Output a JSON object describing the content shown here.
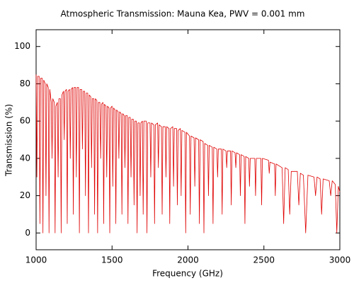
{
  "chart_data": {
    "type": "line",
    "title": "Atmospheric Transmission: Mauna Kea, PWV = 0.001 mm",
    "x_label": "Frequency (GHz)",
    "y_label": "Transmission (%)",
    "color": "#e00000",
    "xlim": [
      1000,
      3000
    ],
    "ylim": [
      -9,
      109
    ],
    "xticks": [
      1000,
      1500,
      2000,
      2500,
      3000
    ],
    "yticks": [
      0,
      20,
      40,
      60,
      80,
      100
    ],
    "x": [
      1000,
      1005,
      1010,
      1020,
      1025,
      1030,
      1040,
      1045,
      1050,
      1060,
      1065,
      1070,
      1080,
      1085,
      1090,
      1100,
      1105,
      1110,
      1120,
      1125,
      1130,
      1140,
      1145,
      1150,
      1160,
      1165,
      1170,
      1180,
      1185,
      1190,
      1200,
      1205,
      1210,
      1220,
      1225,
      1230,
      1240,
      1245,
      1250,
      1260,
      1265,
      1270,
      1280,
      1285,
      1290,
      1300,
      1305,
      1310,
      1320,
      1325,
      1330,
      1340,
      1345,
      1350,
      1360,
      1365,
      1370,
      1380,
      1385,
      1390,
      1400,
      1405,
      1410,
      1420,
      1425,
      1430,
      1440,
      1445,
      1450,
      1460,
      1465,
      1470,
      1480,
      1485,
      1490,
      1500,
      1505,
      1510,
      1520,
      1525,
      1530,
      1540,
      1545,
      1550,
      1560,
      1565,
      1570,
      1580,
      1585,
      1590,
      1600,
      1605,
      1610,
      1620,
      1625,
      1630,
      1640,
      1645,
      1650,
      1660,
      1665,
      1670,
      1680,
      1685,
      1690,
      1700,
      1705,
      1710,
      1725,
      1730,
      1735,
      1750,
      1755,
      1760,
      1775,
      1780,
      1785,
      1800,
      1805,
      1810,
      1825,
      1830,
      1835,
      1850,
      1855,
      1860,
      1875,
      1880,
      1885,
      1900,
      1905,
      1910,
      1925,
      1930,
      1935,
      1950,
      1955,
      1960,
      1980,
      1985,
      1990,
      2010,
      2015,
      2020,
      2040,
      2045,
      2050,
      2070,
      2075,
      2080,
      2100,
      2105,
      2110,
      2130,
      2135,
      2140,
      2160,
      2165,
      2170,
      2190,
      2195,
      2200,
      2220,
      2225,
      2230,
      2250,
      2255,
      2260,
      2280,
      2285,
      2290,
      2310,
      2315,
      2320,
      2340,
      2345,
      2350,
      2370,
      2375,
      2380,
      2400,
      2405,
      2410,
      2440,
      2445,
      2450,
      2480,
      2485,
      2490,
      2530,
      2535,
      2540,
      2570,
      2575,
      2580,
      2620,
      2630,
      2640,
      2660,
      2670,
      2680,
      2720,
      2730,
      2740,
      2760,
      2775,
      2790,
      2830,
      2840,
      2850,
      2870,
      2880,
      2890,
      2930,
      2940,
      2950,
      2970,
      2980,
      2990,
      3000
    ],
    "values": [
      85,
      30,
      84,
      84,
      5,
      83,
      83,
      0,
      82,
      80,
      20,
      80,
      78,
      0,
      77,
      70,
      40,
      72,
      70,
      0,
      68,
      70,
      30,
      72,
      72,
      0,
      74,
      76,
      50,
      76,
      77,
      5,
      76,
      77,
      40,
      77,
      78,
      10,
      78,
      78,
      30,
      78,
      78,
      0,
      77,
      77,
      45,
      76,
      76,
      20,
      75,
      75,
      0,
      74,
      73,
      35,
      72,
      72,
      10,
      72,
      71,
      0,
      70,
      70,
      40,
      69,
      70,
      5,
      69,
      68,
      30,
      68,
      67,
      0,
      67,
      68,
      25,
      67,
      66,
      5,
      66,
      65,
      40,
      65,
      64,
      10,
      64,
      63,
      35,
      63,
      63,
      5,
      62,
      62,
      30,
      61,
      61,
      15,
      60,
      60,
      0,
      59,
      59,
      20,
      59,
      60,
      10,
      60,
      60,
      0,
      59,
      59,
      30,
      59,
      58,
      5,
      58,
      59,
      35,
      58,
      57,
      10,
      57,
      57,
      30,
      57,
      56,
      5,
      56,
      57,
      25,
      56,
      56,
      15,
      55,
      56,
      20,
      55,
      54,
      0,
      54,
      52,
      10,
      52,
      51,
      25,
      51,
      50,
      5,
      50,
      49,
      0,
      48,
      47,
      20,
      47,
      46,
      5,
      46,
      45,
      30,
      45,
      45,
      10,
      45,
      44,
      35,
      44,
      44,
      15,
      44,
      43,
      35,
      43,
      42,
      20,
      42,
      41,
      5,
      41,
      40,
      25,
      40,
      40,
      20,
      40,
      40,
      15,
      40,
      39,
      32,
      38,
      37,
      20,
      37,
      35,
      5,
      35,
      34,
      10,
      33,
      33,
      15,
      32,
      31,
      0,
      31,
      30,
      20,
      30,
      29,
      10,
      29,
      28,
      20,
      28,
      26,
      0,
      25,
      22
    ]
  }
}
